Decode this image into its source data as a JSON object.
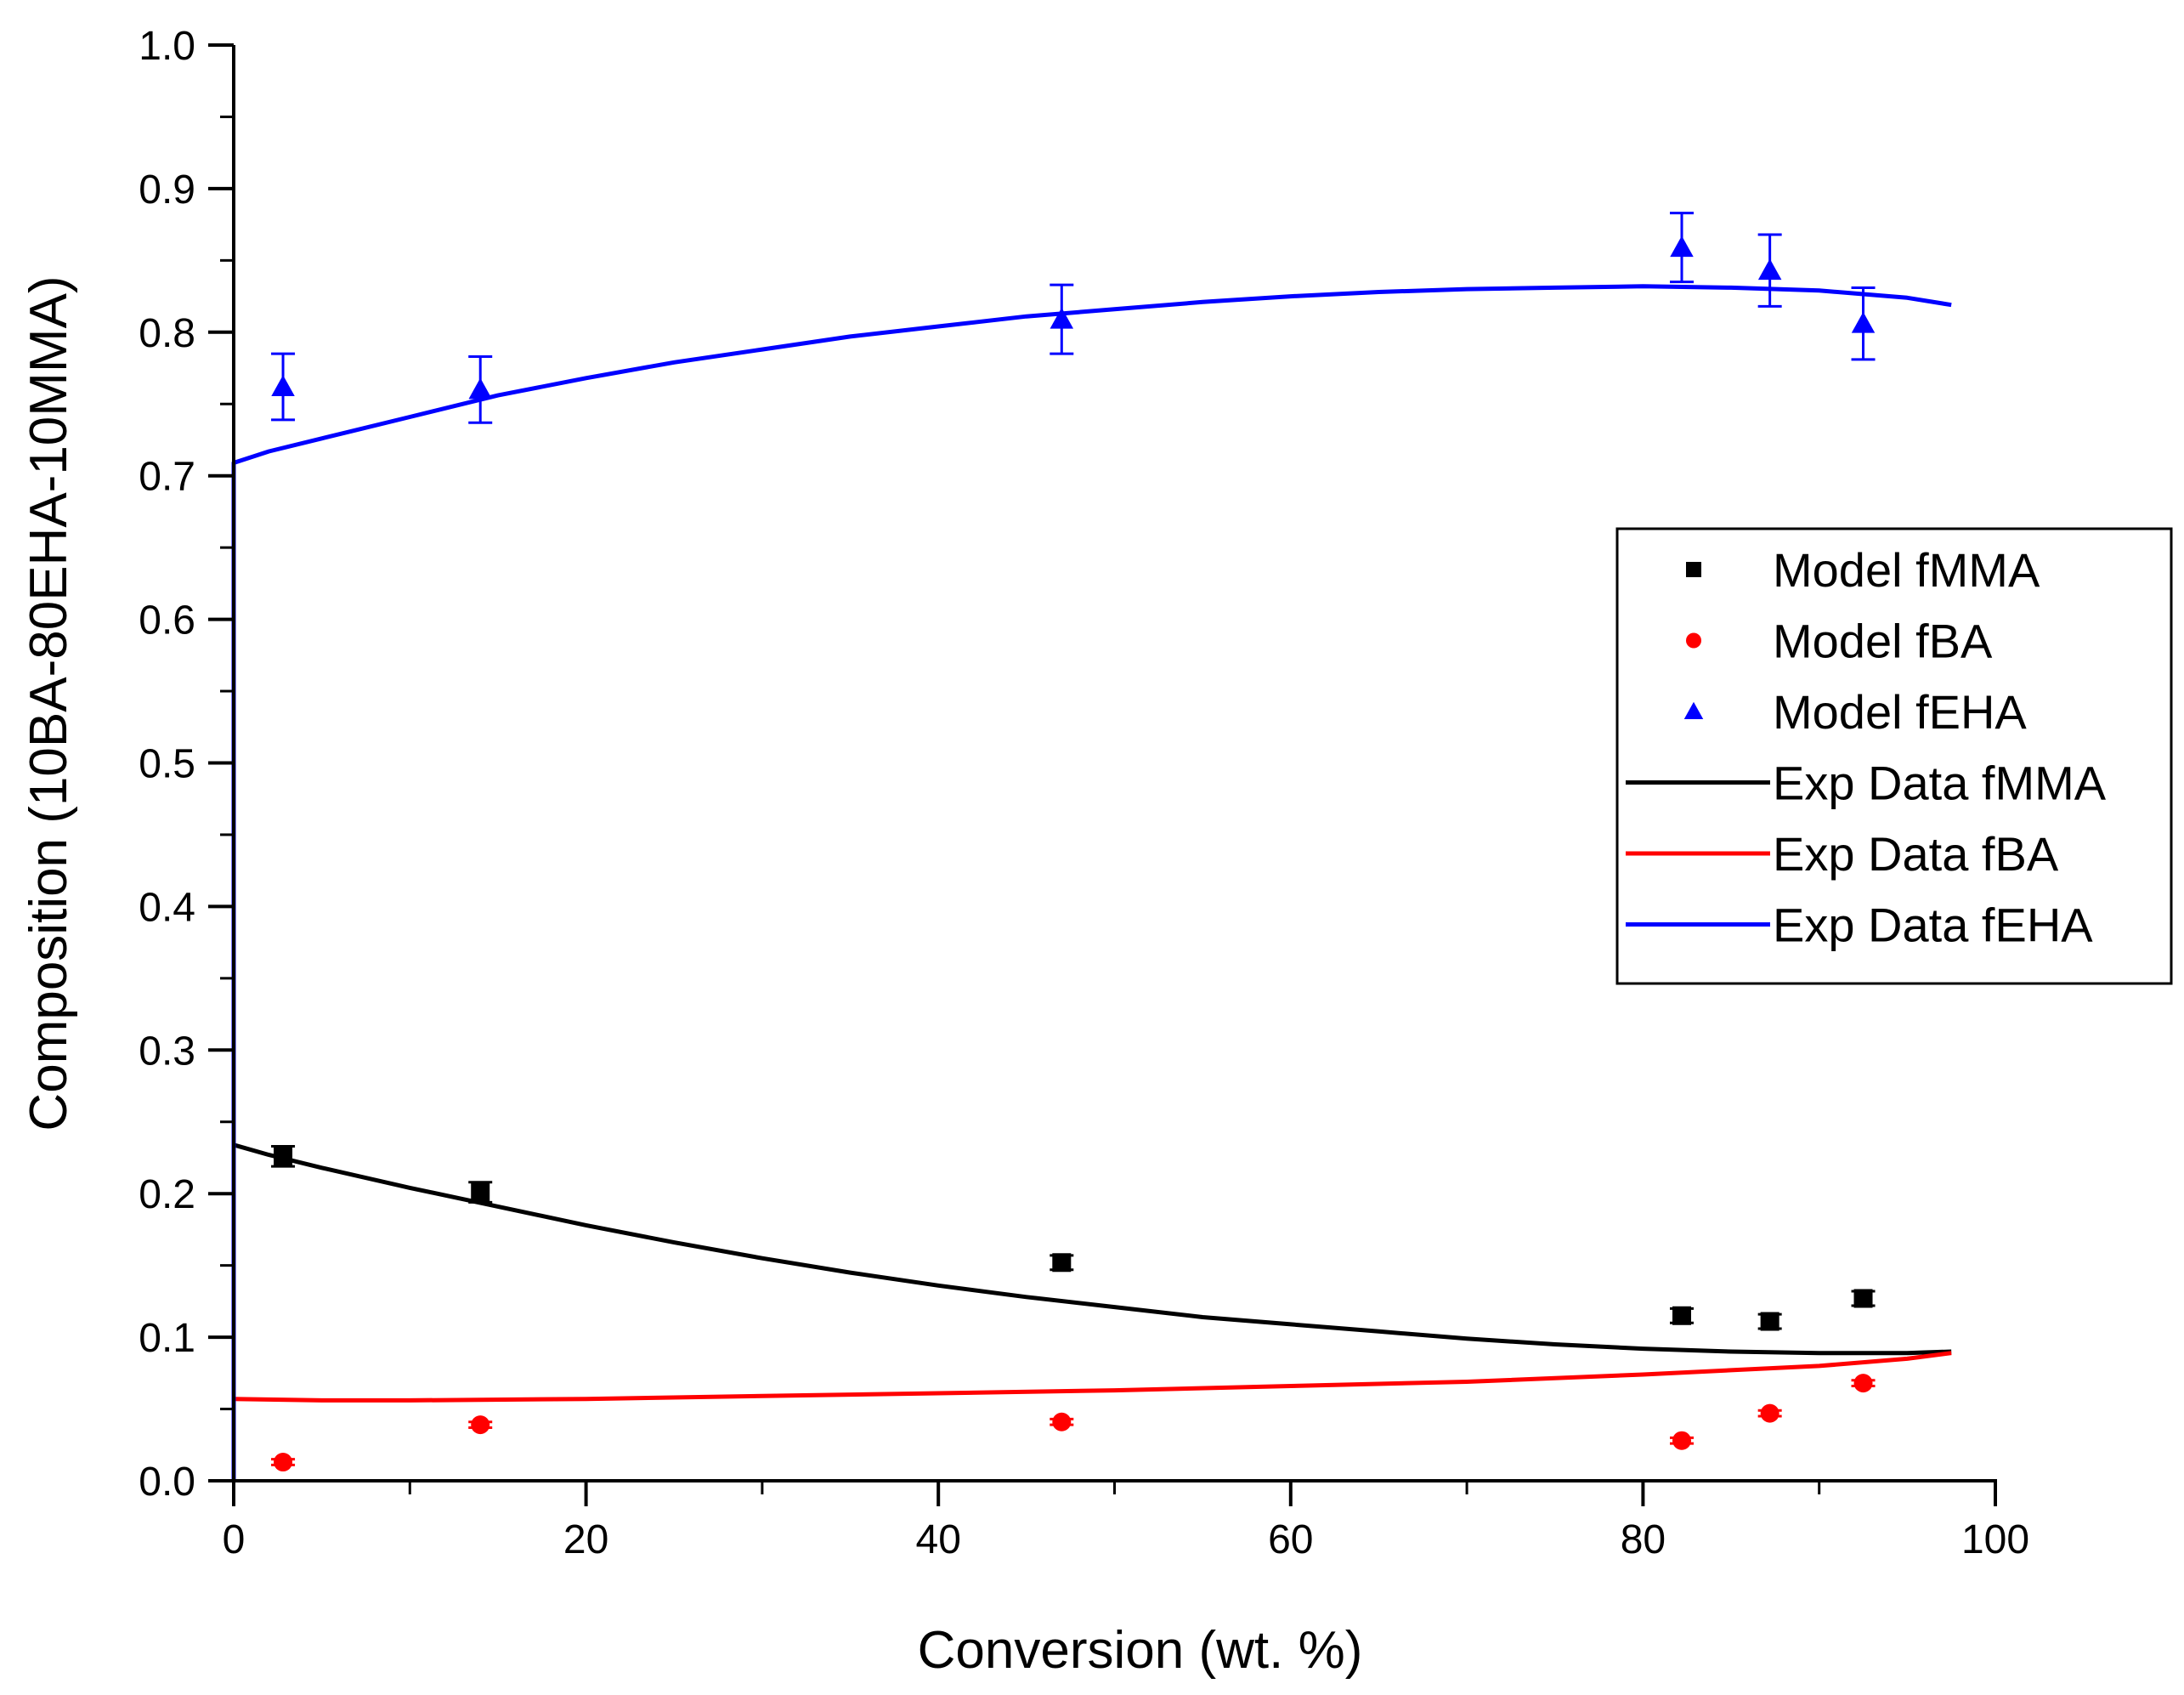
{
  "chart_data": {
    "type": "scatter",
    "title": "",
    "xlabel": "Conversion (wt. %)",
    "ylabel": "Composition (10BA-80EHA-10MMA)",
    "xlim": [
      0,
      100
    ],
    "ylim": [
      0.0,
      1.0
    ],
    "x_ticks": [
      0,
      20,
      40,
      60,
      80,
      100
    ],
    "x_tick_labels": [
      "0",
      "20",
      "40",
      "60",
      "80",
      "100"
    ],
    "y_ticks": [
      0.0,
      0.1,
      0.2,
      0.3,
      0.4,
      0.5,
      0.6,
      0.7,
      0.8,
      0.9,
      1.0
    ],
    "y_tick_labels": [
      "0.0",
      "0.1",
      "0.2",
      "0.3",
      "0.4",
      "0.5",
      "0.6",
      "0.7",
      "0.8",
      "0.9",
      "1.0"
    ],
    "grid": false,
    "legend_position": "right",
    "scatter_series": [
      {
        "name": "Model fMMA",
        "marker": "square",
        "color": "#000000",
        "x": [
          2.8,
          14.0,
          47.0,
          82.2,
          87.2,
          92.5
        ],
        "y": [
          0.226,
          0.201,
          0.152,
          0.115,
          0.111,
          0.127
        ],
        "err": [
          0.007,
          0.007,
          0.005,
          0.005,
          0.005,
          0.005
        ]
      },
      {
        "name": "Model fBA",
        "marker": "circle",
        "color": "#ff0000",
        "x": [
          2.8,
          14.0,
          47.0,
          82.2,
          87.2,
          92.5
        ],
        "y": [
          0.013,
          0.039,
          0.041,
          0.028,
          0.047,
          0.068
        ],
        "err": [
          0.002,
          0.002,
          0.002,
          0.002,
          0.002,
          0.002
        ]
      },
      {
        "name": "Model fEHA",
        "marker": "triangle",
        "color": "#0000ff",
        "x": [
          2.8,
          14.0,
          47.0,
          82.2,
          87.2,
          92.5
        ],
        "y": [
          0.762,
          0.76,
          0.809,
          0.859,
          0.843,
          0.806
        ],
        "err": [
          0.023,
          0.023,
          0.024,
          0.024,
          0.025,
          0.025
        ]
      }
    ],
    "line_series": [
      {
        "name": "Exp Data fMMA",
        "color": "#000000",
        "x": [
          0,
          2,
          5,
          10,
          15,
          20,
          25,
          30,
          35,
          40,
          45,
          50,
          55,
          60,
          65,
          70,
          75,
          80,
          85,
          90,
          95,
          97.5
        ],
        "y": [
          0.234,
          0.227,
          0.218,
          0.204,
          0.191,
          0.178,
          0.166,
          0.155,
          0.145,
          0.136,
          0.128,
          0.121,
          0.114,
          0.109,
          0.104,
          0.099,
          0.095,
          0.092,
          0.09,
          0.089,
          0.089,
          0.09
        ]
      },
      {
        "name": "Exp Data fBA",
        "color": "#ff0000",
        "x": [
          0,
          5,
          10,
          20,
          30,
          40,
          50,
          60,
          70,
          80,
          85,
          90,
          95,
          97.5
        ],
        "y": [
          0.057,
          0.056,
          0.056,
          0.057,
          0.059,
          0.061,
          0.063,
          0.066,
          0.069,
          0.074,
          0.077,
          0.08,
          0.085,
          0.089
        ]
      },
      {
        "name": "Exp Data fEHA",
        "color": "#0000ff",
        "x": [
          0,
          0,
          0.5,
          2,
          5,
          10,
          15,
          20,
          25,
          30,
          35,
          40,
          45,
          50,
          55,
          60,
          65,
          70,
          75,
          80,
          85,
          90,
          95,
          97.5
        ],
        "y": [
          0.0,
          0.709,
          0.711,
          0.717,
          0.726,
          0.741,
          0.756,
          0.768,
          0.779,
          0.788,
          0.797,
          0.804,
          0.811,
          0.816,
          0.821,
          0.825,
          0.828,
          0.83,
          0.831,
          0.832,
          0.831,
          0.829,
          0.824,
          0.819
        ]
      }
    ]
  }
}
